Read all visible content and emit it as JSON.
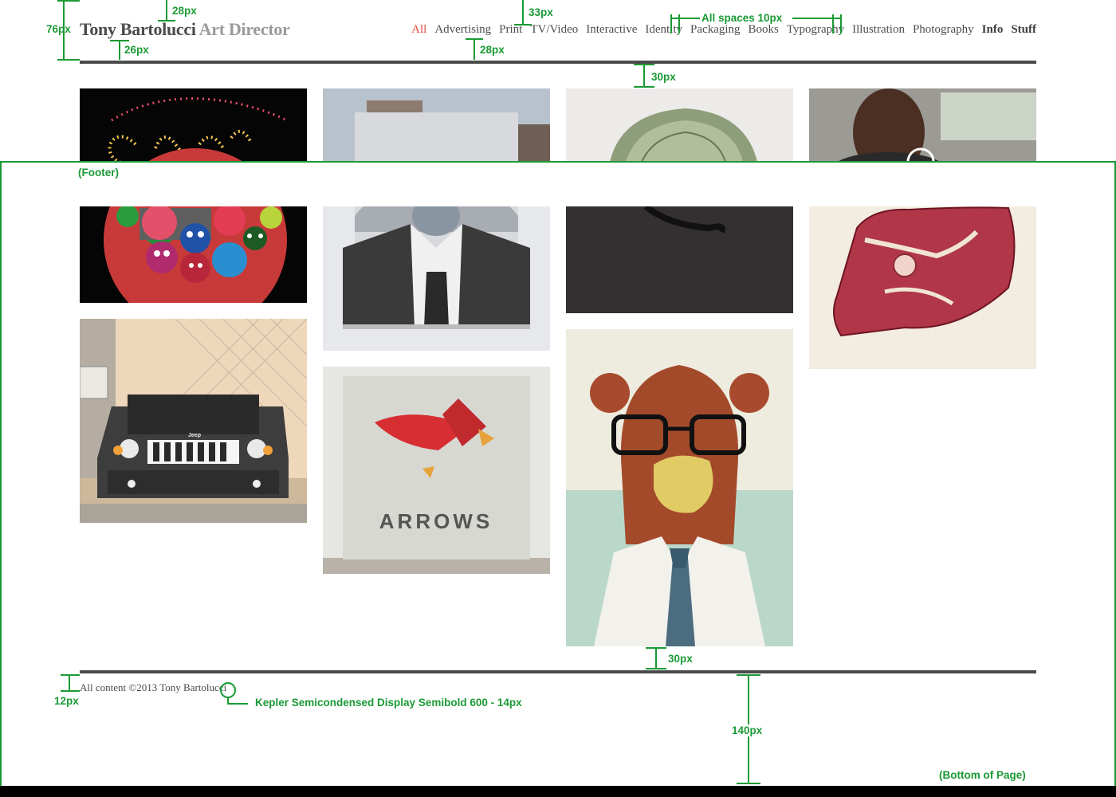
{
  "header": {
    "name": "Tony Bartolucci",
    "role": "Art Director"
  },
  "nav": {
    "items": [
      {
        "label": "All",
        "style": "active"
      },
      {
        "label": "Advertising",
        "style": "normal"
      },
      {
        "label": "Print",
        "style": "normal"
      },
      {
        "label": "TV/Video",
        "style": "normal"
      },
      {
        "label": "Interactive",
        "style": "normal"
      },
      {
        "label": "Identity",
        "style": "normal"
      },
      {
        "label": "Packaging",
        "style": "normal"
      },
      {
        "label": "Books",
        "style": "normal"
      },
      {
        "label": "Typography",
        "style": "normal"
      },
      {
        "label": "Illustration",
        "style": "normal"
      },
      {
        "label": "Photography",
        "style": "normal"
      },
      {
        "label": "Info",
        "style": "bold"
      },
      {
        "label": "Stuff",
        "style": "bold"
      }
    ]
  },
  "thumbnails": {
    "neon": "neon-sign-photo",
    "building": "building-photo",
    "money": "money-roll-photo",
    "car_man": "man-in-car-video",
    "faces": "faces-bowl-illustration",
    "suit": "suit-portrait-painting",
    "letter": "letter-b-typography",
    "meat": "meat-illustration",
    "jeep": "jeep-illustration",
    "arrows": "arrows-poster",
    "bear": "bear-illustration",
    "arrows_text": "ARROWS",
    "jeep_text": "Jeep"
  },
  "footer": {
    "copyright": "All content ©2013 Tony Bartolucci"
  },
  "annotations": {
    "m76": "76px",
    "m28a": "28px",
    "m26": "26px",
    "m33": "33px",
    "m28b": "28px",
    "spaces": "All spaces 10px",
    "m30a": "30px",
    "footer_label": "(Footer)",
    "m30b": "30px",
    "m12": "12px",
    "font_spec": "Kepler Semicondensed Display Semibold 600 - 14px",
    "m140": "140px",
    "bottom_label": "(Bottom of Page)"
  },
  "colors": {
    "accent": "#e14f3a",
    "annotation": "#1a9a34",
    "rule": "#4b4b4b"
  }
}
